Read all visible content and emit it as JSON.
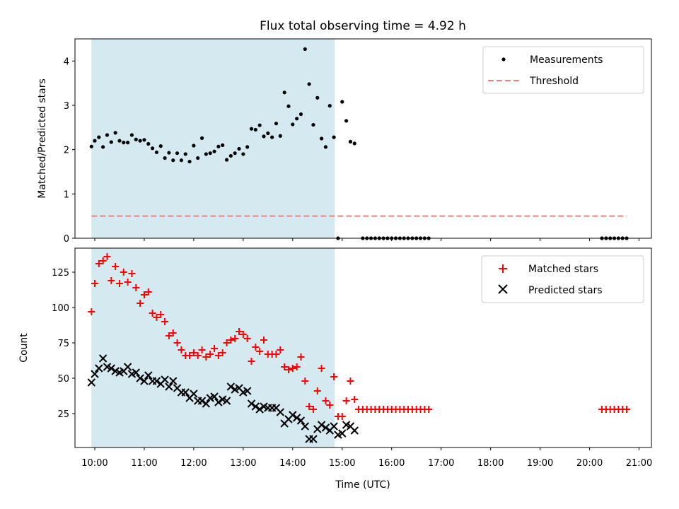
{
  "chart_data": [
    {
      "type": "scatter",
      "title": "Flux total observing time = 4.92 h",
      "xlabel": "",
      "ylabel": "Matched/Predicted stars",
      "ylim": [
        0,
        4.5
      ],
      "yticks": [
        0,
        1,
        2,
        3,
        4
      ],
      "xlim": [
        "09:36",
        "21:15"
      ],
      "shaded_region": {
        "x_start": "09:56",
        "x_end": "14:51",
        "color": "#d4eaf0"
      },
      "legend_position": "top-right",
      "series": [
        {
          "name": "Measurements",
          "marker": "dot",
          "color": "#000000",
          "points": [
            [
              "09:56",
              2.07
            ],
            [
              "10:00",
              2.2
            ],
            [
              "10:05",
              2.28
            ],
            [
              "10:10",
              2.06
            ],
            [
              "10:15",
              2.33
            ],
            [
              "10:20",
              2.17
            ],
            [
              "10:25",
              2.38
            ],
            [
              "10:30",
              2.2
            ],
            [
              "10:35",
              2.16
            ],
            [
              "10:40",
              2.16
            ],
            [
              "10:45",
              2.33
            ],
            [
              "10:50",
              2.23
            ],
            [
              "10:55",
              2.2
            ],
            [
              "11:00",
              2.22
            ],
            [
              "11:05",
              2.13
            ],
            [
              "11:10",
              2.03
            ],
            [
              "11:15",
              1.94
            ],
            [
              "11:20",
              2.08
            ],
            [
              "11:25",
              1.81
            ],
            [
              "11:30",
              1.93
            ],
            [
              "11:35",
              1.76
            ],
            [
              "11:40",
              1.92
            ],
            [
              "11:45",
              1.76
            ],
            [
              "11:50",
              1.9
            ],
            [
              "11:55",
              1.73
            ],
            [
              "12:00",
              2.09
            ],
            [
              "12:05",
              1.81
            ],
            [
              "12:10",
              2.26
            ],
            [
              "12:15",
              1.9
            ],
            [
              "12:20",
              1.92
            ],
            [
              "12:25",
              1.96
            ],
            [
              "12:30",
              2.07
            ],
            [
              "12:35",
              2.1
            ],
            [
              "12:40",
              1.77
            ],
            [
              "12:45",
              1.86
            ],
            [
              "12:50",
              1.92
            ],
            [
              "12:55",
              2.02
            ],
            [
              "13:00",
              1.9
            ],
            [
              "13:05",
              2.06
            ],
            [
              "13:10",
              2.47
            ],
            [
              "13:15",
              2.45
            ],
            [
              "13:20",
              2.55
            ],
            [
              "13:25",
              2.3
            ],
            [
              "13:30",
              2.37
            ],
            [
              "13:35",
              2.28
            ],
            [
              "13:40",
              2.59
            ],
            [
              "13:45",
              2.31
            ],
            [
              "13:50",
              3.29
            ],
            [
              "13:55",
              2.98
            ],
            [
              "14:00",
              2.57
            ],
            [
              "14:05",
              2.7
            ],
            [
              "14:10",
              2.8
            ],
            [
              "14:15",
              4.27
            ],
            [
              "14:20",
              3.48
            ],
            [
              "14:25",
              2.56
            ],
            [
              "14:30",
              3.17
            ],
            [
              "14:35",
              2.25
            ],
            [
              "14:40",
              2.06
            ],
            [
              "14:45",
              2.99
            ],
            [
              "14:50",
              2.28
            ],
            [
              "15:00",
              3.08
            ],
            [
              "15:05",
              2.65
            ],
            [
              "15:10",
              2.18
            ],
            [
              "15:15",
              2.14
            ],
            [
              "14:55",
              0
            ],
            [
              "15:25",
              0
            ],
            [
              "15:30",
              0
            ],
            [
              "15:35",
              0
            ],
            [
              "15:40",
              0
            ],
            [
              "15:45",
              0
            ],
            [
              "15:50",
              0
            ],
            [
              "15:55",
              0
            ],
            [
              "16:00",
              0
            ],
            [
              "16:05",
              0
            ],
            [
              "16:10",
              0
            ],
            [
              "16:15",
              0
            ],
            [
              "16:20",
              0
            ],
            [
              "16:25",
              0
            ],
            [
              "16:30",
              0
            ],
            [
              "16:35",
              0
            ],
            [
              "16:40",
              0
            ],
            [
              "16:45",
              0
            ],
            [
              "20:15",
              0
            ],
            [
              "20:20",
              0
            ],
            [
              "20:25",
              0
            ],
            [
              "20:30",
              0
            ],
            [
              "20:35",
              0
            ],
            [
              "20:40",
              0
            ],
            [
              "20:45",
              0
            ]
          ]
        },
        {
          "name": "Threshold",
          "marker": "dashed-line",
          "color": "#f08080",
          "points": [
            [
              "09:56",
              0.5
            ],
            [
              "20:45",
              0.5
            ]
          ]
        }
      ]
    },
    {
      "type": "scatter",
      "title": "",
      "xlabel": "Time (UTC)",
      "ylabel": "Count",
      "ylim": [
        1,
        142
      ],
      "yticks": [
        25,
        50,
        75,
        100,
        125
      ],
      "xlim": [
        "09:36",
        "21:15"
      ],
      "xticks": [
        "10:00",
        "11:00",
        "12:00",
        "13:00",
        "14:00",
        "15:00",
        "16:00",
        "17:00",
        "18:00",
        "19:00",
        "20:00",
        "21:00"
      ],
      "shaded_region": {
        "x_start": "09:56",
        "x_end": "14:51",
        "color": "#d4eaf0"
      },
      "legend_position": "top-right",
      "series": [
        {
          "name": "Matched stars",
          "marker": "plus",
          "color": "#ff0000",
          "points": [
            [
              "09:56",
              97
            ],
            [
              "10:00",
              117
            ],
            [
              "10:05",
              131
            ],
            [
              "10:10",
              133
            ],
            [
              "10:15",
              136
            ],
            [
              "10:20",
              119
            ],
            [
              "10:25",
              129
            ],
            [
              "10:30",
              117
            ],
            [
              "10:35",
              125
            ],
            [
              "10:40",
              118
            ],
            [
              "10:45",
              124
            ],
            [
              "10:50",
              114
            ],
            [
              "10:55",
              103
            ],
            [
              "11:00",
              109
            ],
            [
              "11:05",
              111
            ],
            [
              "11:10",
              96
            ],
            [
              "11:15",
              93
            ],
            [
              "11:20",
              95
            ],
            [
              "11:25",
              90
            ],
            [
              "11:30",
              80
            ],
            [
              "11:35",
              82
            ],
            [
              "11:40",
              75
            ],
            [
              "11:45",
              70
            ],
            [
              "11:50",
              66
            ],
            [
              "11:55",
              66
            ],
            [
              "12:00",
              68
            ],
            [
              "12:05",
              66
            ],
            [
              "12:10",
              70
            ],
            [
              "12:15",
              65
            ],
            [
              "12:20",
              67
            ],
            [
              "12:25",
              71
            ],
            [
              "12:30",
              66
            ],
            [
              "12:35",
              68
            ],
            [
              "12:40",
              75
            ],
            [
              "12:45",
              77
            ],
            [
              "12:50",
              78
            ],
            [
              "12:55",
              83
            ],
            [
              "13:00",
              81
            ],
            [
              "13:05",
              78
            ],
            [
              "13:10",
              62
            ],
            [
              "13:15",
              72
            ],
            [
              "13:20",
              69
            ],
            [
              "13:25",
              77
            ],
            [
              "13:30",
              67
            ],
            [
              "13:35",
              67
            ],
            [
              "13:40",
              67
            ],
            [
              "13:45",
              70
            ],
            [
              "13:50",
              58
            ],
            [
              "13:55",
              56
            ],
            [
              "14:00",
              57
            ],
            [
              "14:05",
              58
            ],
            [
              "14:10",
              65
            ],
            [
              "14:15",
              48
            ],
            [
              "14:20",
              30
            ],
            [
              "14:25",
              28
            ],
            [
              "14:30",
              41
            ],
            [
              "14:35",
              57
            ],
            [
              "14:40",
              34
            ],
            [
              "14:45",
              31
            ],
            [
              "14:50",
              51
            ],
            [
              "14:55",
              23
            ],
            [
              "15:00",
              23
            ],
            [
              "15:05",
              34
            ],
            [
              "15:10",
              48
            ],
            [
              "15:15",
              35
            ],
            [
              "15:20",
              28
            ],
            [
              "15:25",
              28
            ],
            [
              "15:30",
              28
            ],
            [
              "15:35",
              28
            ],
            [
              "15:40",
              28
            ],
            [
              "15:45",
              28
            ],
            [
              "15:50",
              28
            ],
            [
              "15:55",
              28
            ],
            [
              "16:00",
              28
            ],
            [
              "16:05",
              28
            ],
            [
              "16:10",
              28
            ],
            [
              "16:15",
              28
            ],
            [
              "16:20",
              28
            ],
            [
              "16:25",
              28
            ],
            [
              "16:30",
              28
            ],
            [
              "16:35",
              28
            ],
            [
              "16:40",
              28
            ],
            [
              "16:45",
              28
            ],
            [
              "20:15",
              28
            ],
            [
              "20:20",
              28
            ],
            [
              "20:25",
              28
            ],
            [
              "20:30",
              28
            ],
            [
              "20:35",
              28
            ],
            [
              "20:40",
              28
            ],
            [
              "20:45",
              28
            ]
          ]
        },
        {
          "name": "Predicted stars",
          "marker": "x",
          "color": "#000000",
          "points": [
            [
              "09:56",
              47
            ],
            [
              "10:00",
              53
            ],
            [
              "10:05",
              57
            ],
            [
              "10:10",
              64
            ],
            [
              "10:15",
              58
            ],
            [
              "10:20",
              57
            ],
            [
              "10:25",
              55
            ],
            [
              "10:30",
              54
            ],
            [
              "10:35",
              55
            ],
            [
              "10:40",
              58
            ],
            [
              "10:45",
              53
            ],
            [
              "10:50",
              54
            ],
            [
              "10:55",
              50
            ],
            [
              "11:00",
              48
            ],
            [
              "11:05",
              52
            ],
            [
              "11:10",
              48
            ],
            [
              "11:15",
              48
            ],
            [
              "11:20",
              46
            ],
            [
              "11:25",
              49
            ],
            [
              "11:30",
              44
            ],
            [
              "11:35",
              48
            ],
            [
              "11:40",
              43
            ],
            [
              "11:45",
              40
            ],
            [
              "11:50",
              40
            ],
            [
              "11:55",
              36
            ],
            [
              "12:00",
              39
            ],
            [
              "12:05",
              34
            ],
            [
              "12:10",
              34
            ],
            [
              "12:15",
              32
            ],
            [
              "12:20",
              36
            ],
            [
              "12:25",
              37
            ],
            [
              "12:30",
              33
            ],
            [
              "12:35",
              35
            ],
            [
              "12:40",
              34
            ],
            [
              "12:45",
              44
            ],
            [
              "12:50",
              42
            ],
            [
              "12:55",
              43
            ],
            [
              "13:00",
              40
            ],
            [
              "13:05",
              41
            ],
            [
              "13:10",
              32
            ],
            [
              "13:15",
              30
            ],
            [
              "13:20",
              28
            ],
            [
              "13:25",
              30
            ],
            [
              "13:30",
              29
            ],
            [
              "13:35",
              29
            ],
            [
              "13:40",
              29
            ],
            [
              "13:45",
              26
            ],
            [
              "13:50",
              18
            ],
            [
              "13:55",
              21
            ],
            [
              "14:00",
              24
            ],
            [
              "14:05",
              22
            ],
            [
              "14:10",
              20
            ],
            [
              "14:15",
              16
            ],
            [
              "14:20",
              7
            ],
            [
              "14:25",
              7
            ],
            [
              "14:30",
              14
            ],
            [
              "14:35",
              17
            ],
            [
              "14:40",
              15
            ],
            [
              "14:45",
              13
            ],
            [
              "14:50",
              16
            ],
            [
              "14:55",
              10
            ],
            [
              "15:00",
              11
            ],
            [
              "15:05",
              17
            ],
            [
              "15:10",
              16
            ],
            [
              "15:15",
              13
            ]
          ]
        }
      ]
    }
  ]
}
